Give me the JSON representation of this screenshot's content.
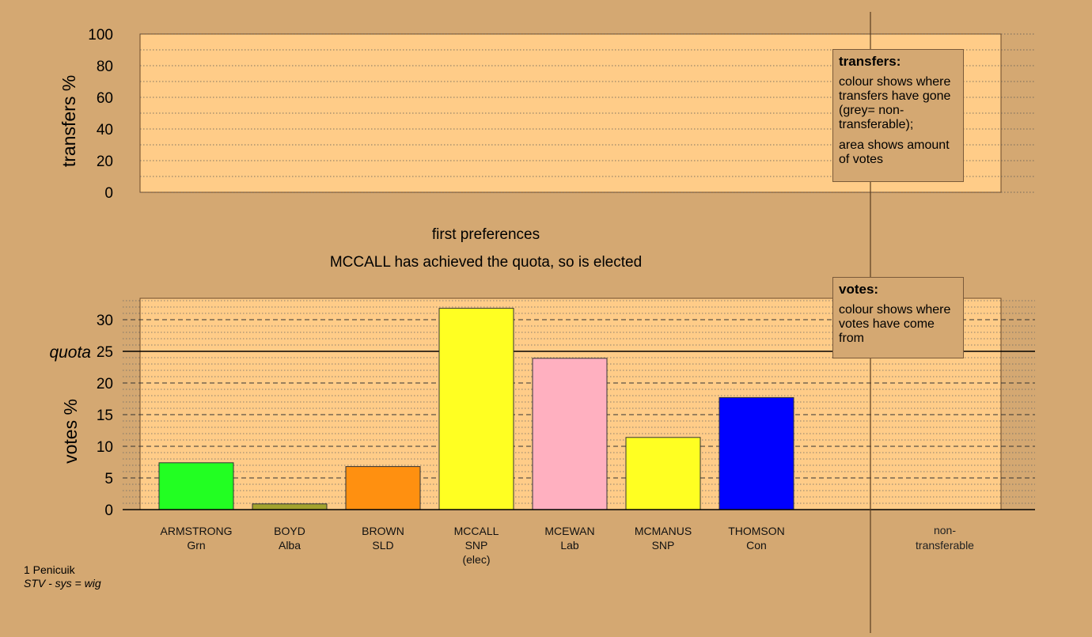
{
  "chart_data": [
    {
      "type": "area",
      "name": "transfers",
      "ylabel": "transfers %",
      "ylim": [
        0,
        100
      ],
      "yticks": [
        0,
        20,
        40,
        60,
        80,
        100
      ],
      "series": [],
      "legend": {
        "title": "transfers:",
        "para1": "colour shows where transfers have gone (grey= non-transferable);",
        "para2": "area shows amount of votes"
      }
    },
    {
      "type": "bar",
      "name": "votes",
      "title": "first preferences",
      "subtitle": "MCCALL has achieved the quota, so is elected",
      "ylabel": "votes %",
      "ylim": [
        0,
        33
      ],
      "yticks": [
        0,
        5,
        10,
        15,
        20,
        25,
        30
      ],
      "quota": {
        "label": "quota",
        "value": 25
      },
      "categories": [
        {
          "name": "ARMSTRONG",
          "party": "Grn",
          "note": "",
          "value": 7.4,
          "color": "#22FF22"
        },
        {
          "name": "BOYD",
          "party": "Alba",
          "note": "",
          "value": 0.9,
          "color": "#A3A32E"
        },
        {
          "name": "BROWN",
          "party": "SLD",
          "note": "",
          "value": 6.8,
          "color": "#FF9010"
        },
        {
          "name": "MCCALL",
          "party": "SNP",
          "note": "(elec)",
          "value": 31.8,
          "color": "#FFFF22"
        },
        {
          "name": "MCEWAN",
          "party": "Lab",
          "note": "",
          "value": 23.9,
          "color": "#FFB0C0"
        },
        {
          "name": "MCMANUS",
          "party": "SNP",
          "note": "",
          "value": 11.4,
          "color": "#FFFF22"
        },
        {
          "name": "THOMSON",
          "party": "Con",
          "note": "",
          "value": 17.7,
          "color": "#0000FF"
        }
      ],
      "nontransferable": {
        "line1": "non-",
        "line2": "transferable"
      },
      "legend": {
        "title": "votes:",
        "para1": "colour shows where votes have come from"
      }
    }
  ],
  "colors": {
    "background": "#D4A872",
    "plot": "#FFCC88"
  },
  "footer": {
    "line1": "1 Penicuik",
    "line2": "STV - sys = wig"
  }
}
